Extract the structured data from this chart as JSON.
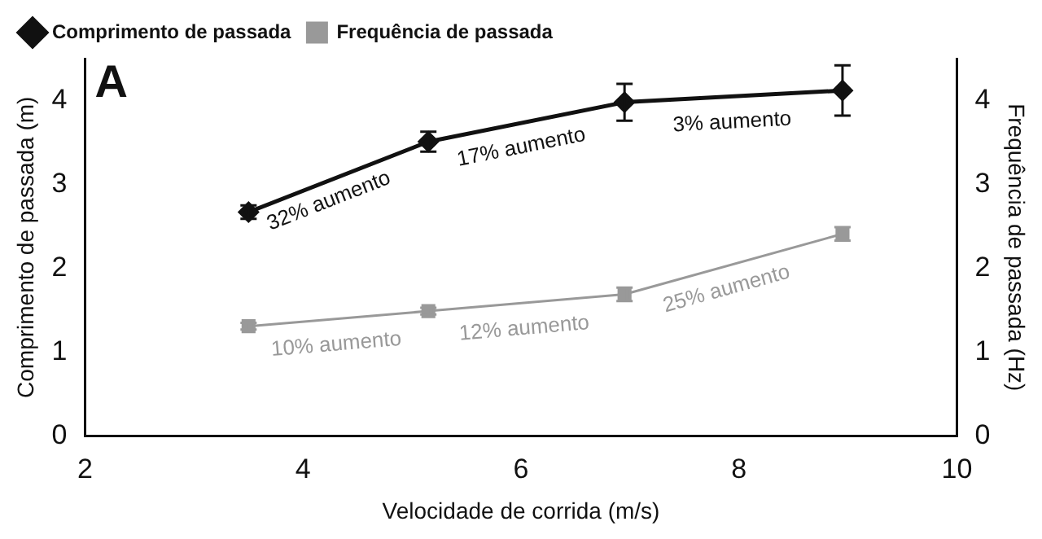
{
  "chart_data": {
    "type": "line",
    "xlabel": "Velocidade de corrida (m/s)",
    "ylabel": "Comprimento de passada (m)",
    "y2label": "Frequência de passada (Hz)",
    "x": [
      3.5,
      5.15,
      6.95,
      8.95
    ],
    "series": [
      {
        "name": "Comprimento de passada",
        "color": "#111111",
        "values": [
          2.67,
          3.51,
          3.98,
          4.12
        ],
        "errors": [
          0.08,
          0.12,
          0.22,
          0.3
        ],
        "marker": "diamond"
      },
      {
        "name": "Frequência de passada",
        "color": "#999999",
        "values": [
          1.31,
          1.49,
          1.69,
          2.41
        ],
        "errors": [
          0.04,
          0.04,
          0.08,
          0.08
        ],
        "axis": "y2",
        "marker": "square"
      }
    ],
    "xlim": [
      2,
      10
    ],
    "xticks": [
      2,
      4,
      6,
      8,
      10
    ],
    "ylim": [
      0,
      4.5
    ],
    "yticks": [
      0,
      1,
      2,
      3,
      4
    ],
    "y2lim": [
      0,
      4.5
    ],
    "y2ticks": [
      0,
      1,
      2,
      3,
      4
    ],
    "grid": false,
    "legend": "top left",
    "annotations": [
      "A",
      "32% aumento",
      "17% aumento",
      "3% aumento",
      "10% aumento",
      "12% aumento",
      "25% aumento"
    ]
  }
}
